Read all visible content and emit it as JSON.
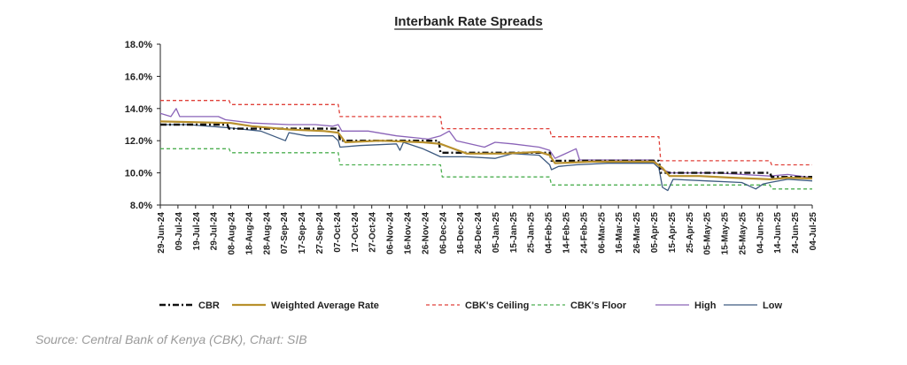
{
  "source_note": "Source: Central Bank of Kenya (CBK), Chart: SIB",
  "colors": {
    "cbr": "#111111",
    "weighted": "#b8902c",
    "ceiling": "#e0413a",
    "floor": "#4caf50",
    "high": "#8a63b8",
    "low": "#3d5a80"
  },
  "chart_data": {
    "type": "line",
    "title": "Interbank Rate Spreads",
    "y_unit": "%",
    "ylim": [
      8.0,
      18.0
    ],
    "yticks": [
      "18.0%",
      "16.0%",
      "14.0%",
      "12.0%",
      "10.0%",
      "8.0%"
    ],
    "xlim": [
      "2024-06-29",
      "2025-07-04"
    ],
    "x_tick_labels": [
      "29-Jun-24",
      "09-Jul-24",
      "19-Jul-24",
      "29-Jul-24",
      "08-Aug-24",
      "18-Aug-24",
      "28-Aug-24",
      "07-Sep-24",
      "17-Sep-24",
      "27-Sep-24",
      "07-Oct-24",
      "17-Oct-24",
      "27-Oct-24",
      "06-Nov-24",
      "16-Nov-24",
      "26-Nov-24",
      "06-Dec-24",
      "16-Dec-24",
      "26-Dec-24",
      "05-Jan-25",
      "15-Jan-25",
      "25-Jan-25",
      "04-Feb-25",
      "14-Feb-25",
      "24-Feb-25",
      "06-Mar-25",
      "16-Mar-25",
      "26-Mar-25",
      "05-Apr-25",
      "15-Apr-25",
      "25-Apr-25",
      "05-May-25",
      "15-May-25",
      "25-May-25",
      "04-Jun-25",
      "14-Jun-25",
      "24-Jun-25",
      "04-Jul-25"
    ],
    "grid": false,
    "legend_position": "bottom",
    "series": [
      {
        "name": "CBR",
        "key": "cbr",
        "style": "dash-dot",
        "points": [
          [
            "2024-06-29",
            13.0
          ],
          [
            "2024-08-06",
            13.0
          ],
          [
            "2024-08-07",
            12.75
          ],
          [
            "2024-10-08",
            12.75
          ],
          [
            "2024-10-09",
            12.0
          ],
          [
            "2024-12-04",
            12.0
          ],
          [
            "2024-12-05",
            11.25
          ],
          [
            "2025-02-05",
            11.25
          ],
          [
            "2025-02-06",
            10.75
          ],
          [
            "2025-04-08",
            10.75
          ],
          [
            "2025-04-09",
            10.0
          ],
          [
            "2025-06-10",
            10.0
          ],
          [
            "2025-06-11",
            9.75
          ],
          [
            "2025-07-04",
            9.75
          ]
        ]
      },
      {
        "name": "Weighted Average Rate",
        "key": "weighted",
        "style": "solid",
        "points": [
          [
            "2024-06-29",
            13.2
          ],
          [
            "2024-07-20",
            13.15
          ],
          [
            "2024-08-08",
            13.1
          ],
          [
            "2024-08-20",
            12.9
          ],
          [
            "2024-09-10",
            12.7
          ],
          [
            "2024-09-30",
            12.6
          ],
          [
            "2024-10-08",
            12.5
          ],
          [
            "2024-10-12",
            11.9
          ],
          [
            "2024-11-01",
            12.0
          ],
          [
            "2024-11-25",
            11.9
          ],
          [
            "2024-12-05",
            11.8
          ],
          [
            "2024-12-20",
            11.2
          ],
          [
            "2025-01-10",
            11.2
          ],
          [
            "2025-01-30",
            11.3
          ],
          [
            "2025-02-05",
            11.1
          ],
          [
            "2025-02-08",
            10.6
          ],
          [
            "2025-03-01",
            10.7
          ],
          [
            "2025-04-05",
            10.7
          ],
          [
            "2025-04-10",
            10.3
          ],
          [
            "2025-04-14",
            9.8
          ],
          [
            "2025-05-01",
            9.8
          ],
          [
            "2025-05-20",
            9.7
          ],
          [
            "2025-06-10",
            9.6
          ],
          [
            "2025-06-20",
            9.7
          ],
          [
            "2025-07-04",
            9.65
          ]
        ]
      },
      {
        "name": "CBK's Ceiling",
        "key": "ceiling",
        "style": "dashed",
        "points": [
          [
            "2024-06-29",
            14.5
          ],
          [
            "2024-08-07",
            14.5
          ],
          [
            "2024-08-08",
            14.25
          ],
          [
            "2024-10-08",
            14.25
          ],
          [
            "2024-10-09",
            13.5
          ],
          [
            "2024-12-05",
            13.5
          ],
          [
            "2024-12-06",
            12.75
          ],
          [
            "2025-02-05",
            12.75
          ],
          [
            "2025-02-06",
            12.25
          ],
          [
            "2025-04-08",
            12.25
          ],
          [
            "2025-04-09",
            10.75
          ],
          [
            "2025-06-10",
            10.75
          ],
          [
            "2025-06-11",
            10.5
          ],
          [
            "2025-07-04",
            10.5
          ]
        ]
      },
      {
        "name": "CBK's Floor",
        "key": "floor",
        "style": "dashed",
        "points": [
          [
            "2024-06-29",
            11.5
          ],
          [
            "2024-08-07",
            11.5
          ],
          [
            "2024-08-08",
            11.25
          ],
          [
            "2024-10-08",
            11.25
          ],
          [
            "2024-10-09",
            10.5
          ],
          [
            "2024-12-05",
            10.5
          ],
          [
            "2024-12-06",
            9.75
          ],
          [
            "2025-02-05",
            9.75
          ],
          [
            "2025-02-06",
            9.25
          ],
          [
            "2025-06-10",
            9.25
          ],
          [
            "2025-06-11",
            9.0
          ],
          [
            "2025-07-04",
            9.0
          ]
        ]
      },
      {
        "name": "High",
        "key": "high",
        "style": "solid",
        "points": [
          [
            "2024-06-29",
            13.7
          ],
          [
            "2024-07-05",
            13.5
          ],
          [
            "2024-07-08",
            14.0
          ],
          [
            "2024-07-10",
            13.5
          ],
          [
            "2024-08-01",
            13.5
          ],
          [
            "2024-08-05",
            13.3
          ],
          [
            "2024-08-20",
            13.1
          ],
          [
            "2024-09-10",
            13.0
          ],
          [
            "2024-09-25",
            13.0
          ],
          [
            "2024-10-05",
            12.9
          ],
          [
            "2024-10-08",
            13.0
          ],
          [
            "2024-10-10",
            12.6
          ],
          [
            "2024-10-25",
            12.6
          ],
          [
            "2024-11-10",
            12.3
          ],
          [
            "2024-11-28",
            12.1
          ],
          [
            "2024-12-05",
            12.3
          ],
          [
            "2024-12-10",
            12.6
          ],
          [
            "2024-12-14",
            12.0
          ],
          [
            "2024-12-30",
            11.6
          ],
          [
            "2025-01-05",
            11.9
          ],
          [
            "2025-01-15",
            11.8
          ],
          [
            "2025-01-30",
            11.6
          ],
          [
            "2025-02-05",
            11.4
          ],
          [
            "2025-02-08",
            10.9
          ],
          [
            "2025-02-20",
            11.5
          ],
          [
            "2025-02-22",
            10.8
          ],
          [
            "2025-03-15",
            10.8
          ],
          [
            "2025-04-05",
            10.8
          ],
          [
            "2025-04-10",
            10.2
          ],
          [
            "2025-04-15",
            10.0
          ],
          [
            "2025-05-10",
            10.0
          ],
          [
            "2025-05-25",
            9.9
          ],
          [
            "2025-06-10",
            9.8
          ],
          [
            "2025-06-20",
            9.9
          ],
          [
            "2025-07-04",
            9.7
          ]
        ]
      },
      {
        "name": "Low",
        "key": "low",
        "style": "solid",
        "points": [
          [
            "2024-06-29",
            13.0
          ],
          [
            "2024-07-15",
            13.0
          ],
          [
            "2024-08-07",
            12.8
          ],
          [
            "2024-08-25",
            12.6
          ],
          [
            "2024-09-08",
            12.0
          ],
          [
            "2024-09-10",
            12.5
          ],
          [
            "2024-09-20",
            12.3
          ],
          [
            "2024-10-05",
            12.3
          ],
          [
            "2024-10-08",
            12.0
          ],
          [
            "2024-10-09",
            11.6
          ],
          [
            "2024-10-20",
            11.7
          ],
          [
            "2024-11-10",
            11.8
          ],
          [
            "2024-11-12",
            11.4
          ],
          [
            "2024-11-14",
            11.9
          ],
          [
            "2024-11-25",
            11.5
          ],
          [
            "2024-11-29",
            11.3
          ],
          [
            "2024-12-05",
            11.0
          ],
          [
            "2024-12-20",
            11.0
          ],
          [
            "2025-01-05",
            10.9
          ],
          [
            "2025-01-15",
            11.2
          ],
          [
            "2025-01-30",
            11.1
          ],
          [
            "2025-02-05",
            10.5
          ],
          [
            "2025-02-06",
            10.2
          ],
          [
            "2025-02-10",
            10.4
          ],
          [
            "2025-02-20",
            10.5
          ],
          [
            "2025-03-10",
            10.6
          ],
          [
            "2025-04-05",
            10.6
          ],
          [
            "2025-04-08",
            10.3
          ],
          [
            "2025-04-10",
            9.1
          ],
          [
            "2025-04-13",
            8.9
          ],
          [
            "2025-04-16",
            9.6
          ],
          [
            "2025-05-05",
            9.5
          ],
          [
            "2025-05-25",
            9.4
          ],
          [
            "2025-06-02",
            9.0
          ],
          [
            "2025-06-06",
            9.3
          ],
          [
            "2025-06-10",
            9.4
          ],
          [
            "2025-06-20",
            9.6
          ],
          [
            "2025-07-04",
            9.5
          ]
        ]
      }
    ]
  }
}
